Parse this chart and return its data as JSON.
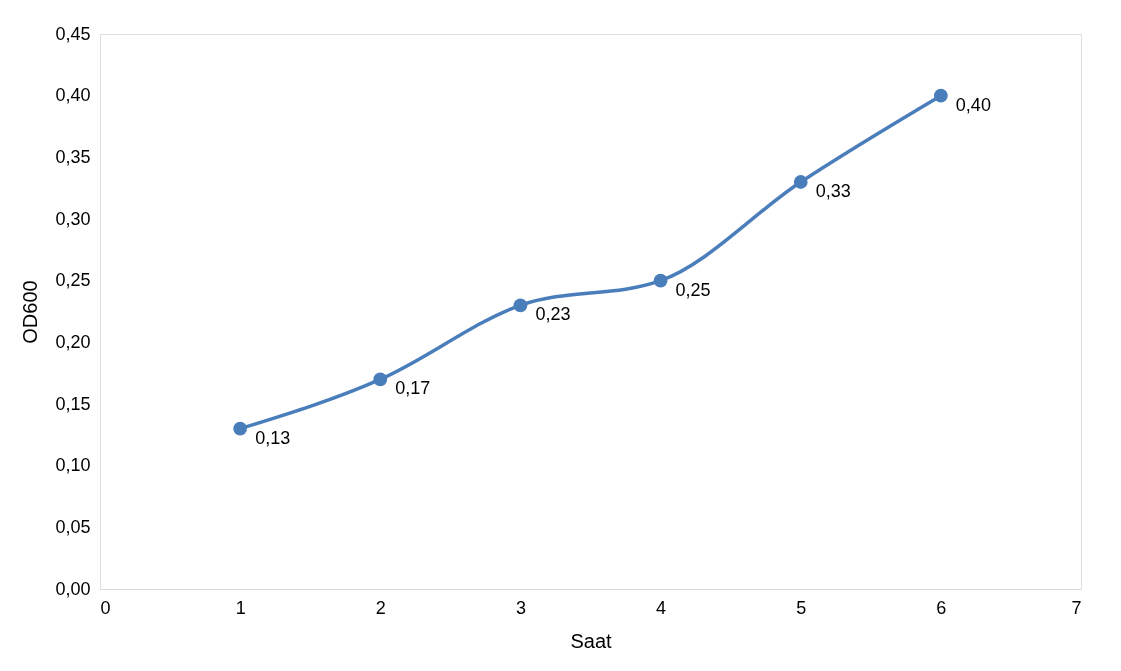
{
  "chart_data": {
    "type": "line",
    "xlabel": "Saat",
    "ylabel": "OD600",
    "x": [
      1,
      2,
      3,
      4,
      5,
      6
    ],
    "series": [
      {
        "color": "#4a7ebb",
        "values": [
          0.13,
          0.17,
          0.23,
          0.25,
          0.33,
          0.4
        ],
        "value_labels": [
          "0,13",
          "0,17",
          "0,23",
          "0,25",
          "0,33",
          "0,40"
        ]
      }
    ],
    "xlim": [
      0,
      7
    ],
    "xticks": [
      0,
      1,
      2,
      3,
      4,
      5,
      6,
      7
    ],
    "ylim": [
      0,
      0.45
    ],
    "yticks": [
      {
        "value": 0,
        "label": "0,00"
      },
      {
        "value": 0.05,
        "label": "0,05"
      },
      {
        "value": 0.1,
        "label": "0,10"
      },
      {
        "value": 0.15,
        "label": "0,15"
      },
      {
        "value": 0.2,
        "label": "0,20"
      },
      {
        "value": 0.25,
        "label": "0,25"
      },
      {
        "value": 0.3,
        "label": "0,30"
      },
      {
        "value": 0.35,
        "label": "0,35"
      },
      {
        "value": 0.4,
        "label": "0,40"
      },
      {
        "value": 0.45,
        "label": "0,45"
      }
    ],
    "marker": "circle",
    "grid": false
  }
}
